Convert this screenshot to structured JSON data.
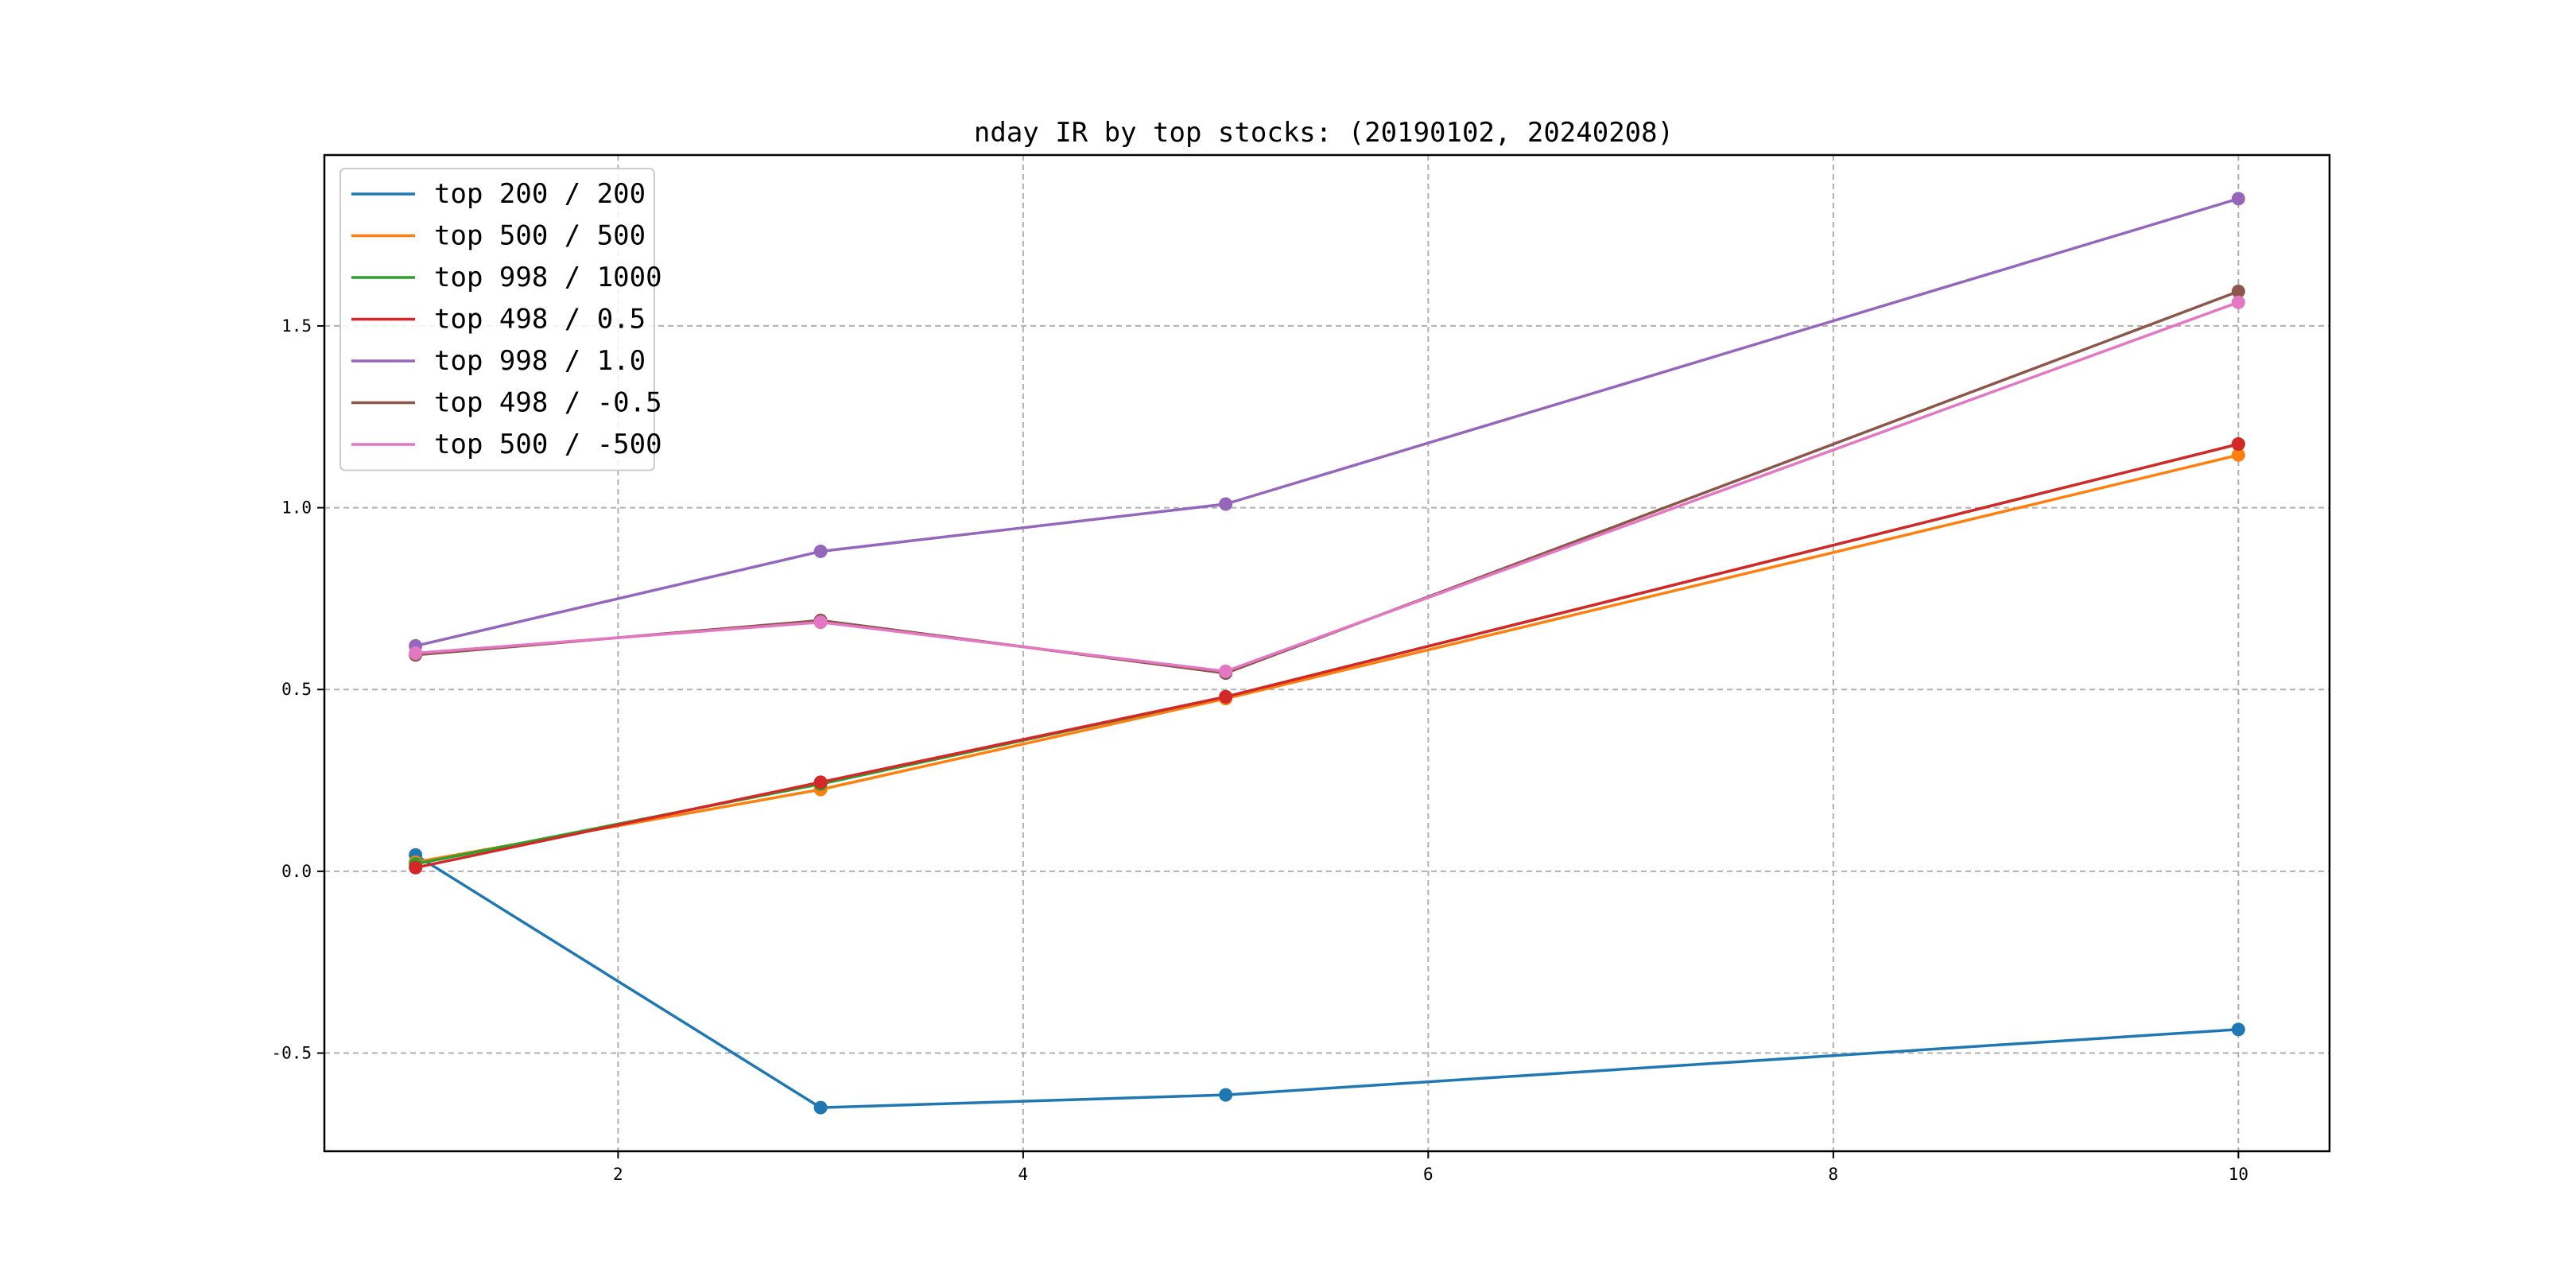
{
  "chart_data": {
    "type": "line",
    "title": "nday IR by top stocks: (20190102, 20240208)",
    "xlabel": "",
    "ylabel": "",
    "x": [
      1,
      3,
      5,
      10
    ],
    "xlim": [
      0.55,
      10.45
    ],
    "ylim": [
      -0.77,
      1.97
    ],
    "xticks": [
      2,
      4,
      6,
      8,
      10
    ],
    "yticks": [
      -0.5,
      0.0,
      0.5,
      1.0,
      1.5
    ],
    "xtick_labels": [
      "2",
      "4",
      "6",
      "8",
      "10"
    ],
    "ytick_labels": [
      "-0.5",
      "0.0",
      "0.5",
      "1.0",
      "1.5"
    ],
    "grid": true,
    "legend_position": "top-left",
    "series": [
      {
        "name": "top 200 / 200",
        "color": "#1f77b4",
        "values": [
          0.045,
          -0.65,
          -0.615,
          -0.435
        ]
      },
      {
        "name": "top 500 / 500",
        "color": "#ff7f0e",
        "values": [
          0.025,
          0.225,
          0.475,
          1.145
        ]
      },
      {
        "name": "top 998 / 1000",
        "color": "#2ca02c",
        "values": [
          0.02,
          0.24,
          0.48,
          1.175
        ]
      },
      {
        "name": "top 498 / 0.5",
        "color": "#d62728",
        "values": [
          0.01,
          0.245,
          0.48,
          1.175
        ]
      },
      {
        "name": "top 998 / 1.0",
        "color": "#9467bd",
        "values": [
          0.62,
          0.88,
          1.01,
          1.85
        ]
      },
      {
        "name": "top 498 / -0.5",
        "color": "#8c564b",
        "values": [
          0.595,
          0.69,
          0.545,
          1.595
        ]
      },
      {
        "name": "top 500 / -500",
        "color": "#e377c2",
        "values": [
          0.6,
          0.685,
          0.55,
          1.565
        ]
      }
    ]
  }
}
